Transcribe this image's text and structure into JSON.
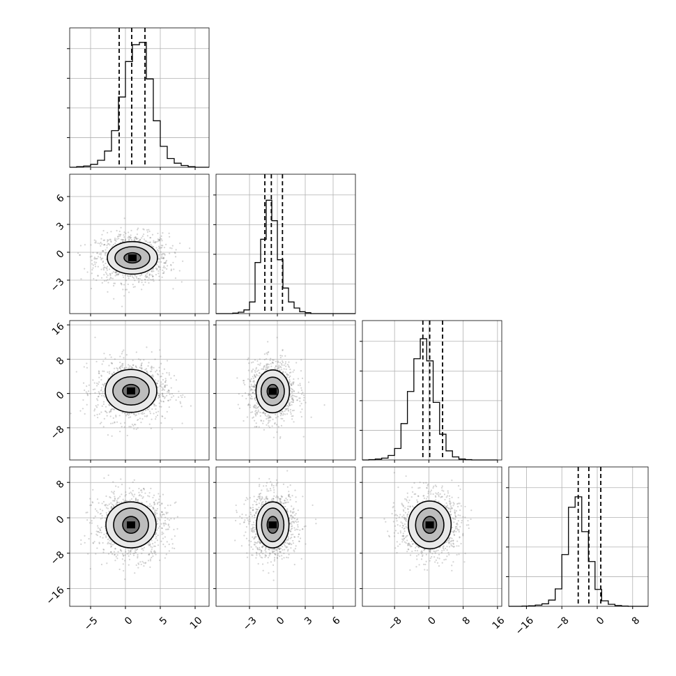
{
  "chart_data": {
    "type": "corner",
    "dimensions": 4,
    "grid": true,
    "colors": {
      "line": "#000000",
      "grid": "#b0b0b0",
      "points": "#808080"
    },
    "axes": [
      {
        "index": 0,
        "range": [
          -8.0,
          12.0
        ],
        "ticks": [
          -5,
          0,
          5,
          10
        ],
        "tick_labels": [
          "−5",
          "0",
          "5",
          "10"
        ]
      },
      {
        "index": 1,
        "range": [
          -6.6,
          8.4
        ],
        "ticks": [
          -3,
          0,
          3,
          6
        ],
        "tick_labels": [
          "−3",
          "0",
          "3",
          "6"
        ]
      },
      {
        "index": 2,
        "range": [
          -15.5,
          17.0
        ],
        "ticks": [
          -8,
          0,
          8,
          16
        ],
        "tick_labels": [
          "−8",
          "0",
          "8",
          "16"
        ]
      },
      {
        "index": 3,
        "range": [
          -20.0,
          11.5
        ],
        "ticks": [
          -16,
          -8,
          0,
          8
        ],
        "tick_labels": [
          "−16",
          "−8",
          "0",
          "8"
        ]
      }
    ],
    "histograms": [
      {
        "dim": 0,
        "bin_edges": [
          -8,
          -7,
          -6,
          -5,
          -4,
          -3,
          -2,
          -1,
          0,
          1,
          2,
          3,
          4,
          5,
          6,
          7,
          8,
          9,
          10,
          11,
          12
        ],
        "counts": [
          0,
          1,
          2,
          5,
          12,
          28,
          63,
          121,
          182,
          211,
          215,
          152,
          80,
          36,
          15,
          7,
          3,
          1,
          0,
          0
        ],
        "quantiles": [
          -0.9,
          0.9,
          2.8
        ],
        "ylim": [
          0,
          240
        ]
      },
      {
        "dim": 1,
        "bin_edges": [
          -6.6,
          -6.0,
          -5.4,
          -4.8,
          -4.2,
          -3.6,
          -3.0,
          -2.4,
          -1.8,
          -1.2,
          -0.6,
          0.0,
          0.6,
          1.2,
          1.8,
          2.4,
          3.0,
          3.6,
          4.2,
          4.8,
          5.4,
          6.0,
          6.6,
          7.2,
          7.8,
          8.4
        ],
        "counts": [
          0,
          0,
          0,
          1,
          3,
          8,
          25,
          110,
          160,
          244,
          200,
          116,
          55,
          25,
          12,
          4,
          2,
          0,
          0,
          0,
          0,
          0,
          0,
          0,
          0
        ],
        "quantiles": [
          -1.35,
          -0.65,
          0.55
        ],
        "ylim": [
          0,
          300
        ]
      },
      {
        "dim": 2,
        "bin_edges": [
          -15.5,
          -14.0,
          -12.5,
          -11.0,
          -9.5,
          -8.0,
          -6.5,
          -5.0,
          -3.5,
          -2.0,
          -0.5,
          1.0,
          2.5,
          4.0,
          5.5,
          7.0,
          8.5,
          10.0,
          11.5,
          13.0,
          14.5,
          16.0
        ],
        "counts": [
          0,
          1,
          3,
          6,
          15,
          38,
          120,
          226,
          334,
          400,
          327,
          190,
          85,
          30,
          10,
          3,
          1,
          0,
          0,
          0,
          0
        ],
        "quantiles": [
          -1.4,
          0.2,
          3.2
        ],
        "ylim": [
          0,
          460
        ]
      },
      {
        "dim": 3,
        "bin_edges": [
          -20.0,
          -18.5,
          -17.0,
          -15.5,
          -14.0,
          -12.5,
          -11.0,
          -9.5,
          -8.0,
          -6.5,
          -5.0,
          -3.5,
          -2.0,
          -0.5,
          1.0,
          2.5,
          4.0,
          5.5,
          7.0,
          8.5,
          10.0,
          11.5
        ],
        "counts": [
          0,
          0,
          1,
          2,
          5,
          10,
          25,
          70,
          208,
          398,
          440,
          300,
          180,
          68,
          22,
          8,
          3,
          1,
          0,
          0,
          0
        ],
        "quantiles": [
          -4.3,
          -1.9,
          0.8
        ],
        "ylim": [
          0,
          560
        ]
      }
    ],
    "pairs": [
      {
        "x_dim": 0,
        "y_dim": 1,
        "center": [
          1.0,
          -0.6
        ],
        "contour_radii": [
          [
            1.2,
            0.55
          ],
          [
            2.5,
            1.2
          ],
          [
            3.6,
            1.75
          ]
        ],
        "spread": [
          2.6,
          1.3
        ]
      },
      {
        "x_dim": 0,
        "y_dim": 2,
        "center": [
          0.8,
          0.6
        ],
        "contour_radii": [
          [
            1.2,
            1.5
          ],
          [
            2.6,
            3.3
          ],
          [
            3.7,
            5.0
          ]
        ],
        "spread": [
          2.6,
          3.5
        ]
      },
      {
        "x_dim": 1,
        "y_dim": 2,
        "center": [
          -0.5,
          0.5
        ],
        "contour_radii": [
          [
            0.6,
            1.6
          ],
          [
            1.25,
            3.3
          ],
          [
            1.8,
            5.0
          ]
        ],
        "spread": [
          1.3,
          3.5
        ]
      },
      {
        "x_dim": 0,
        "y_dim": 3,
        "center": [
          0.8,
          -1.6
        ],
        "contour_radii": [
          [
            1.2,
            1.9
          ],
          [
            2.5,
            3.8
          ],
          [
            3.6,
            5.2
          ]
        ],
        "spread": [
          2.6,
          3.7
        ]
      },
      {
        "x_dim": 1,
        "y_dim": 3,
        "center": [
          -0.5,
          -1.6
        ],
        "contour_radii": [
          [
            0.6,
            1.9
          ],
          [
            1.2,
            3.8
          ],
          [
            1.75,
            5.2
          ]
        ],
        "spread": [
          1.3,
          3.7
        ]
      },
      {
        "x_dim": 2,
        "y_dim": 3,
        "center": [
          0.2,
          -1.6
        ],
        "contour_radii": [
          [
            1.6,
            1.9
          ],
          [
            3.3,
            3.8
          ],
          [
            5.0,
            5.4
          ]
        ],
        "spread": [
          3.5,
          3.7
        ]
      }
    ]
  }
}
